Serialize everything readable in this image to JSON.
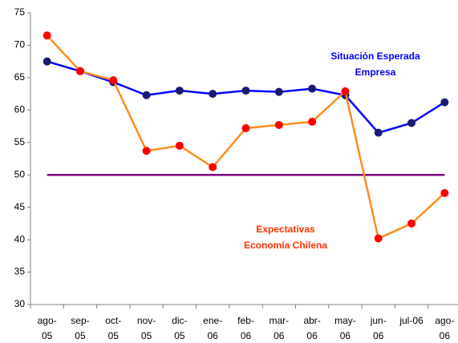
{
  "chart_data": {
    "type": "line",
    "categories": [
      [
        "ago-",
        "05"
      ],
      [
        "sep-",
        "05"
      ],
      [
        "oct-",
        "05"
      ],
      [
        "nov-",
        "05"
      ],
      [
        "dic-",
        "05"
      ],
      [
        "ene-",
        "06"
      ],
      [
        "feb-",
        "06"
      ],
      [
        "mar-",
        "06"
      ],
      [
        "abr-",
        "06"
      ],
      [
        "may-",
        "06"
      ],
      [
        "jun-",
        "06"
      ],
      [
        "jul-06"
      ],
      [
        "ago-",
        "06"
      ]
    ],
    "series": [
      {
        "color": "#0000ff",
        "marker_color": "#1a1a70",
        "markers": true,
        "values": [
          67.5,
          66,
          64.3,
          62.3,
          63,
          62.5,
          63,
          62.8,
          63.3,
          62.3,
          56.5,
          58,
          61.2
        ]
      },
      {
        "color": "#ff8c1a",
        "marker_color": "#ff0000",
        "markers": true,
        "values": [
          71.5,
          66,
          64.6,
          53.7,
          54.5,
          51.2,
          57.2,
          57.7,
          58.2,
          62.9,
          40.2,
          42.5,
          47.2
        ]
      },
      {
        "color": "#800080",
        "markers": false,
        "values": [
          50,
          50,
          50,
          50,
          50,
          50,
          50,
          50,
          50,
          50,
          50,
          50,
          50
        ]
      }
    ],
    "annotations": [
      {
        "lines": [
          "Situación Esperada",
          "Empresa"
        ],
        "color": "#0000ff"
      },
      {
        "lines": [
          "Expectativas",
          "Economía Chilena"
        ],
        "color": "#ff3300"
      }
    ],
    "ylim": [
      30,
      75
    ],
    "yticks": [
      30,
      35,
      40,
      45,
      50,
      55,
      60,
      65,
      70,
      75
    ],
    "grid": false
  }
}
